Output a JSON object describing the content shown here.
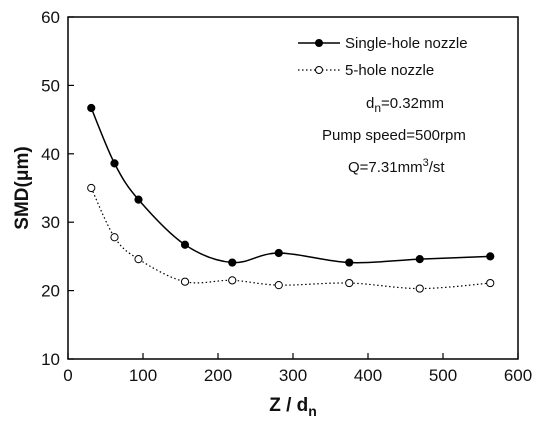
{
  "chart_data": {
    "type": "line",
    "title": "",
    "xlabel": "Z / dn",
    "xlabel_main": "Z / d",
    "xlabel_sub": "n",
    "ylabel": "SMD(μm)",
    "xlim": [
      0,
      600
    ],
    "ylim": [
      10,
      60
    ],
    "xticks": [
      0,
      100,
      200,
      300,
      400,
      500,
      600
    ],
    "yticks": [
      10,
      20,
      30,
      40,
      50,
      60
    ],
    "grid": false,
    "legend_position": "top-right",
    "series": [
      {
        "name": "Single-hole nozzle",
        "style": "solid",
        "marker": "filled-circle",
        "x": [
          31,
          62,
          94,
          156,
          219,
          281,
          375,
          469,
          563
        ],
        "y": [
          46.7,
          38.6,
          33.3,
          26.7,
          24.1,
          25.5,
          24.1,
          24.6,
          25.0
        ]
      },
      {
        "name": "5-hole nozzle",
        "style": "dotted",
        "marker": "open-circle",
        "x": [
          31,
          62,
          94,
          156,
          219,
          281,
          375,
          469,
          563
        ],
        "y": [
          35.0,
          27.8,
          24.6,
          21.3,
          21.5,
          20.8,
          21.1,
          20.3,
          21.1
        ]
      }
    ],
    "annotations": {
      "dn": {
        "main": "d",
        "sub": "n",
        "rest": "=0.32mm"
      },
      "pump": "Pump speed=500rpm",
      "q": {
        "main": "Q=7.31mm",
        "sup": "3",
        "rest": "/st"
      }
    }
  }
}
